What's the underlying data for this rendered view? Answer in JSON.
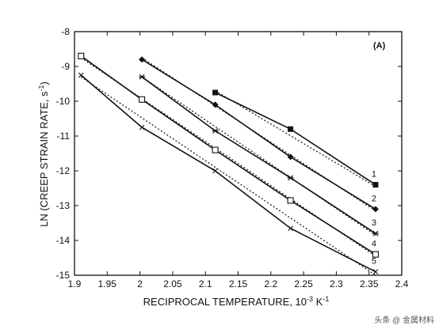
{
  "chart_data": {
    "type": "line",
    "panel_tag": "(A)",
    "xlabel_main": "RECIPROCAL TEMPERATURE, 10",
    "xlabel_sup": "-3",
    "xlabel_tail": " K",
    "xlabel_sup2": "-1",
    "ylabel": "LN (CREEP STRAIN RATE, s",
    "ylabel_sup": "-1",
    "ylabel_tail": ")",
    "xlim": [
      1.9,
      2.4
    ],
    "ylim": [
      -15,
      -8
    ],
    "xticks": [
      "1.9",
      "1.95",
      "2",
      "2.05",
      "2.1",
      "2.15",
      "2.2",
      "2.25",
      "2.3",
      "2.35",
      "2.4"
    ],
    "yticks": [
      "-8",
      "-9",
      "-10",
      "-11",
      "-12",
      "-13",
      "-14",
      "-15"
    ],
    "fits": [
      {
        "x": [
          2.115,
          2.36
        ],
        "y": [
          -9.7,
          -12.45
        ]
      },
      {
        "x": [
          2.003,
          2.36
        ],
        "y": [
          -8.75,
          -13.15
        ]
      },
      {
        "x": [
          2.003,
          2.36
        ],
        "y": [
          -9.3,
          -13.85
        ]
      },
      {
        "x": [
          1.91,
          2.36
        ],
        "y": [
          -8.75,
          -14.45
        ]
      },
      {
        "x": [
          1.91,
          2.36
        ],
        "y": [
          -9.3,
          -15.0
        ]
      }
    ],
    "series": [
      {
        "name": "1",
        "marker": "filled-square",
        "x": [
          2.115,
          2.23,
          2.36
        ],
        "y": [
          -9.75,
          -10.8,
          -12.4
        ]
      },
      {
        "name": "2",
        "marker": "filled-diamond",
        "x": [
          2.003,
          2.115,
          2.23,
          2.36
        ],
        "y": [
          -8.8,
          -10.1,
          -11.6,
          -13.1
        ]
      },
      {
        "name": "3",
        "marker": "asterisk",
        "x": [
          2.003,
          2.115,
          2.23,
          2.36
        ],
        "y": [
          -9.3,
          -10.85,
          -12.2,
          -13.8
        ]
      },
      {
        "name": "4",
        "marker": "open-square",
        "x": [
          1.91,
          2.003,
          2.115,
          2.23,
          2.36
        ],
        "y": [
          -8.7,
          -9.95,
          -11.4,
          -12.85,
          -14.4
        ]
      },
      {
        "name": "5",
        "marker": "cross",
        "x": [
          1.91,
          2.003,
          2.115,
          2.23,
          2.36
        ],
        "y": [
          -9.25,
          -10.75,
          -12.0,
          -13.65,
          -14.9
        ]
      }
    ]
  },
  "watermark": "头条 @ 金属材料"
}
